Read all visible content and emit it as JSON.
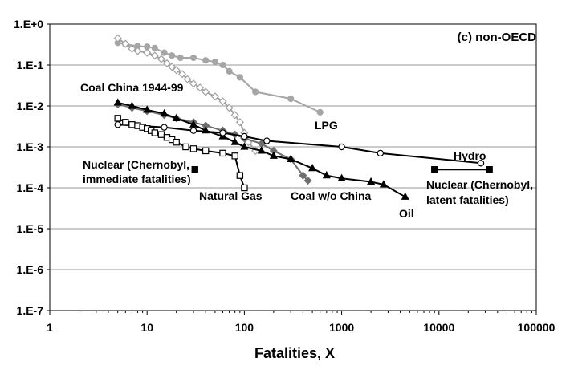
{
  "chart_data": {
    "type": "line",
    "title": "",
    "panel_label": "(c) non-OECD",
    "xlabel": "Fatalities, X",
    "ylabel": "",
    "xscale": "log",
    "yscale": "log",
    "xlim": [
      1,
      100000
    ],
    "ylim": [
      1e-07,
      1
    ],
    "x_ticks": [
      1,
      10,
      100,
      1000,
      10000,
      100000
    ],
    "x_tick_labels": [
      "1",
      "10",
      "100",
      "1000",
      "10000",
      "100000"
    ],
    "y_ticks": [
      1,
      0.1,
      0.01,
      0.001,
      0.0001,
      1e-05,
      1e-06,
      1e-07
    ],
    "y_tick_labels": [
      "1.E+0",
      "1.E-1",
      "1.E-2",
      "1.E-3",
      "1.E-4",
      "1.E-5",
      "1.E-6",
      "1.E-7"
    ],
    "grid": "horizontal",
    "series": [
      {
        "name": "LPG",
        "color": "#a6a6a6",
        "marker": "circle-filled",
        "x": [
          5,
          6,
          8,
          10,
          12,
          15,
          18,
          22,
          30,
          40,
          50,
          60,
          70,
          90,
          130,
          300,
          600
        ],
        "y": [
          0.35,
          0.32,
          0.29,
          0.28,
          0.26,
          0.2,
          0.17,
          0.15,
          0.15,
          0.13,
          0.12,
          0.1,
          0.07,
          0.05,
          0.022,
          0.015,
          0.007
        ]
      },
      {
        "name": "Coal China 1944-99",
        "color": "#a0a0a0",
        "marker": "diamond-open",
        "x": [
          5,
          6,
          7,
          8,
          10,
          12,
          14,
          16,
          18,
          20,
          23,
          26,
          30,
          35,
          40,
          50,
          60,
          70,
          80,
          90,
          100,
          110,
          130
        ],
        "y": [
          0.45,
          0.33,
          0.25,
          0.22,
          0.2,
          0.17,
          0.14,
          0.11,
          0.09,
          0.075,
          0.06,
          0.045,
          0.035,
          0.028,
          0.022,
          0.017,
          0.013,
          0.009,
          0.006,
          0.004,
          0.0022,
          0.0013,
          0.0008
        ]
      },
      {
        "name": "Coal w/o China",
        "color": "#6e6e6e",
        "marker": "diamond-filled",
        "x": [
          5,
          7,
          10,
          15,
          20,
          30,
          40,
          60,
          80,
          100,
          150,
          200,
          300,
          400,
          450
        ],
        "y": [
          0.011,
          0.009,
          0.0075,
          0.006,
          0.005,
          0.004,
          0.0033,
          0.0025,
          0.002,
          0.0016,
          0.0012,
          0.0008,
          0.0005,
          0.0002,
          0.00015
        ]
      },
      {
        "name": "Oil",
        "color": "#000000",
        "marker": "triangle-filled",
        "x": [
          5,
          7,
          10,
          15,
          20,
          30,
          40,
          60,
          80,
          100,
          150,
          200,
          300,
          500,
          700,
          1000,
          2000,
          2700,
          4500
        ],
        "y": [
          0.012,
          0.01,
          0.008,
          0.0065,
          0.005,
          0.0035,
          0.0025,
          0.0018,
          0.0013,
          0.001,
          0.0008,
          0.0006,
          0.0005,
          0.0003,
          0.0002,
          0.00017,
          0.00014,
          0.00012,
          6e-05
        ]
      },
      {
        "name": "Hydro",
        "color": "#000000",
        "marker": "circle-open",
        "x": [
          5,
          15,
          30,
          60,
          100,
          170,
          1000,
          2500,
          27000
        ],
        "y": [
          0.0035,
          0.003,
          0.0025,
          0.0022,
          0.0018,
          0.0014,
          0.001,
          0.0007,
          0.0004
        ]
      },
      {
        "name": "Natural Gas",
        "color": "#000000",
        "marker": "square-open",
        "x": [
          5,
          6,
          7,
          8,
          9,
          10,
          11,
          12,
          14,
          16,
          18,
          20,
          25,
          30,
          40,
          60,
          80,
          90,
          100
        ],
        "y": [
          0.005,
          0.004,
          0.0035,
          0.0033,
          0.003,
          0.0028,
          0.0025,
          0.0022,
          0.002,
          0.0017,
          0.0015,
          0.0013,
          0.001,
          0.0009,
          0.0008,
          0.0007,
          0.0006,
          0.0002,
          0.0001
        ]
      },
      {
        "name": "Nuclear (Chernobyl, immediate fatalities)",
        "color": "#000000",
        "marker": "square-filled",
        "x": [
          31
        ],
        "y": [
          0.00028
        ]
      },
      {
        "name": "Nuclear (Chernobyl, latent fatalities)",
        "color": "#000000",
        "marker": "square-filled",
        "x": [
          9000,
          33000
        ],
        "y": [
          0.00028,
          0.00028
        ]
      }
    ],
    "annotations": [
      {
        "text": "LPG",
        "series": "LPG"
      },
      {
        "text": "Coal China 1944-99",
        "series": "Coal China 1944-99"
      },
      {
        "text": "Hydro",
        "series": "Hydro"
      },
      {
        "text": "Nuclear (Chernobyl,",
        "series": "Nuclear (Chernobyl, immediate fatalities)"
      },
      {
        "text": "immediate fatalities)",
        "series": "Nuclear (Chernobyl, immediate fatalities)"
      },
      {
        "text": "Nuclear (Chernobyl,",
        "series": "Nuclear (Chernobyl, latent fatalities)"
      },
      {
        "text": "latent fatalities)",
        "series": "Nuclear (Chernobyl, latent fatalities)"
      },
      {
        "text": "Natural Gas",
        "series": "Natural Gas"
      },
      {
        "text": "Coal w/o China",
        "series": "Coal w/o China"
      },
      {
        "text": "Oil",
        "series": "Oil"
      }
    ]
  }
}
